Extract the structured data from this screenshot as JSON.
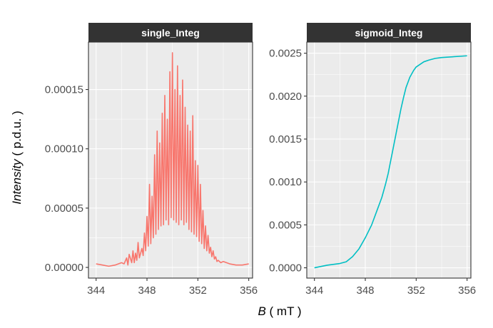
{
  "chart_data": [
    {
      "type": "line",
      "panel": "single_Integ",
      "strip_label": "single_Integ",
      "color": "#F8766D",
      "xlim": [
        343.4,
        356.3
      ],
      "ylim": [
        -9e-06,
        0.00019
      ],
      "x_ticks": [
        344,
        348,
        352,
        356
      ],
      "x_tick_labels": [
        "344",
        "348",
        "352",
        "356"
      ],
      "y_ticks": [
        0,
        5e-05,
        0.0001,
        0.00015
      ],
      "y_tick_labels": [
        "0.00000",
        "0.00005",
        "0.00010",
        "0.00015"
      ],
      "grid": true,
      "series": [
        {
          "x": [
            344.0,
            344.5,
            345.0,
            345.5,
            346.0,
            346.2,
            346.4,
            346.5,
            346.6,
            346.8,
            346.9,
            347.0,
            347.1,
            347.2,
            347.3,
            347.4,
            347.5,
            347.6,
            347.7,
            347.8,
            347.9,
            348.0,
            348.1,
            348.2,
            348.3,
            348.4,
            348.5,
            348.6,
            348.7,
            348.8,
            348.9,
            349.0,
            349.1,
            349.2,
            349.3,
            349.4,
            349.5,
            349.6,
            349.7,
            349.8,
            349.9,
            350.0,
            350.1,
            350.2,
            350.3,
            350.4,
            350.5,
            350.6,
            350.7,
            350.8,
            350.9,
            351.0,
            351.1,
            351.2,
            351.3,
            351.4,
            351.5,
            351.6,
            351.7,
            351.8,
            351.9,
            352.0,
            352.1,
            352.2,
            352.3,
            352.4,
            352.5,
            352.6,
            352.7,
            352.8,
            352.9,
            353.0,
            353.1,
            353.2,
            353.3,
            353.4,
            353.5,
            353.6,
            353.8,
            354.0,
            354.5,
            355.0,
            355.5,
            356.0
          ],
          "y": [
            3e-06,
            2e-06,
            1e-06,
            2e-06,
            4e-06,
            3e-06,
            8e-06,
            2e-06,
            1.1e-05,
            4e-06,
            1.4e-05,
            4e-06,
            1.2e-05,
            6e-06,
            2.1e-05,
            8e-06,
            1.2e-05,
            1.6e-05,
            1e-05,
            2.9e-05,
            1.4e-05,
            4.3e-05,
            1.8e-05,
            7e-05,
            2e-05,
            6e-05,
            2.5e-05,
            9.5e-05,
            2.8e-05,
            0.000115,
            3.2e-05,
            0.000105,
            3.5e-05,
            0.00013,
            3.6e-05,
            0.000145,
            4e-05,
            0.000125,
            3.6e-05,
            0.000165,
            4.2e-05,
            0.000181,
            4e-05,
            0.00015,
            3.8e-05,
            0.00017,
            3.6e-05,
            0.000145,
            4e-05,
            0.000158,
            3.6e-05,
            0.000135,
            3.8e-05,
            0.00012,
            3.2e-05,
            0.000115,
            3e-05,
            0.000128,
            2.8e-05,
            9e-05,
            2.6e-05,
            8.6e-05,
            2.2e-05,
            7e-05,
            2e-05,
            4.8e-05,
            1.6e-05,
            3.5e-05,
            1.4e-05,
            2.7e-05,
            1.2e-05,
            1.7e-05,
            9e-06,
            1.4e-05,
            7e-06,
            9e-06,
            5e-06,
            6e-06,
            4e-06,
            5e-06,
            3e-06,
            2e-06,
            2e-06,
            3e-06
          ]
        }
      ]
    },
    {
      "type": "line",
      "panel": "sigmoid_Integ",
      "strip_label": "sigmoid_Integ",
      "color": "#00BFC4",
      "xlim": [
        343.4,
        356.3
      ],
      "ylim": [
        -0.00012,
        0.00263
      ],
      "x_ticks": [
        344,
        348,
        352,
        356
      ],
      "x_tick_labels": [
        "344",
        "348",
        "352",
        "356"
      ],
      "y_ticks": [
        0,
        0.0005,
        0.001,
        0.0015,
        0.002,
        0.0025
      ],
      "y_tick_labels": [
        "0.0000",
        "0.0005",
        "0.0010",
        "0.0015",
        "0.0020",
        "0.0025"
      ],
      "grid": true,
      "series": [
        {
          "x": [
            344.0,
            345.0,
            346.0,
            346.5,
            347.0,
            347.5,
            348.0,
            348.5,
            349.0,
            349.3,
            349.6,
            349.8,
            350.0,
            350.2,
            350.4,
            350.6,
            350.8,
            351.0,
            351.2,
            351.5,
            351.8,
            352.0,
            352.3,
            352.6,
            353.0,
            353.5,
            354.0,
            355.0,
            356.0
          ],
          "y": [
            0.0,
            3e-05,
            5e-05,
            7e-05,
            0.00013,
            0.00022,
            0.00035,
            0.0005,
            0.0007,
            0.00082,
            0.00098,
            0.0011,
            0.00125,
            0.0014,
            0.00155,
            0.0017,
            0.00185,
            0.00198,
            0.0021,
            0.00222,
            0.0023,
            0.00234,
            0.00237,
            0.0024,
            0.00242,
            0.00244,
            0.00245,
            0.00246,
            0.00247
          ]
        }
      ]
    }
  ],
  "axes": {
    "x_title_var": "B",
    "x_title_unit": " ( mT )",
    "y_title_var": "Intensity",
    "y_title_unit": " ( p.d.u. )"
  }
}
